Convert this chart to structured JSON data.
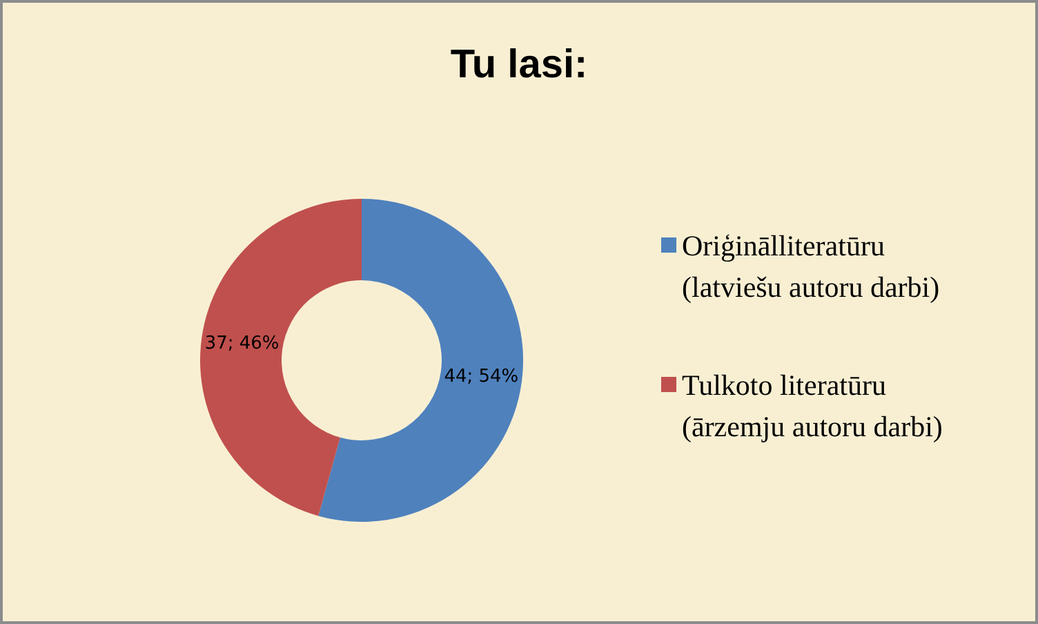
{
  "chart_data": {
    "type": "donut",
    "title": "Tu lasi:",
    "categories": [
      "Oriģinālliteratūru (latviešu autoru darbi)",
      "Tulkoto literatūru (ārzemju autoru darbi)"
    ],
    "values": [
      44,
      37
    ],
    "colors": [
      "#4f81bd",
      "#c0504d"
    ],
    "value_labels": [
      "44; 54%",
      "37; 46%"
    ],
    "legend": "right"
  }
}
